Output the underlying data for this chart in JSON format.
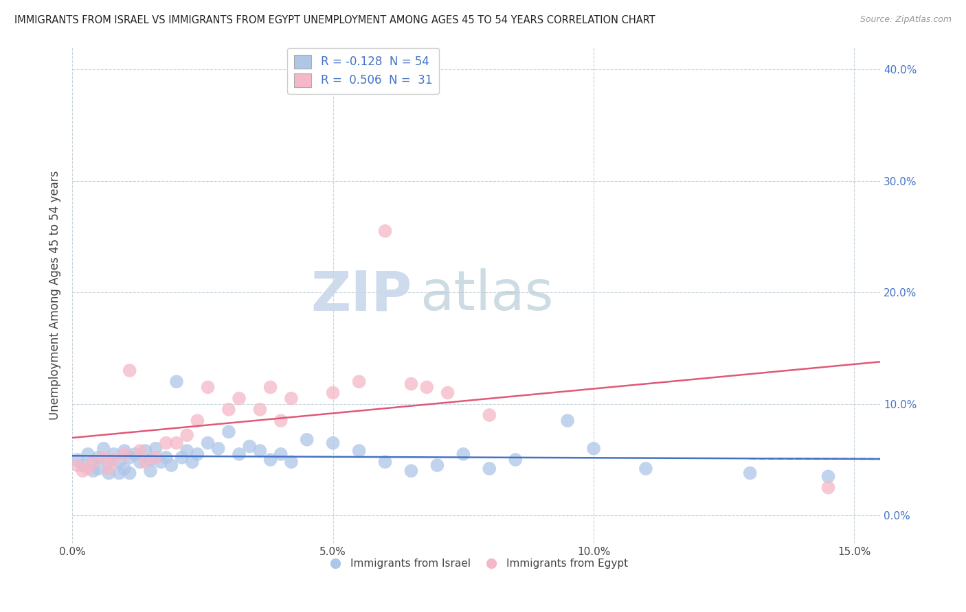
{
  "title": "IMMIGRANTS FROM ISRAEL VS IMMIGRANTS FROM EGYPT UNEMPLOYMENT AMONG AGES 45 TO 54 YEARS CORRELATION CHART",
  "source": "Source: ZipAtlas.com",
  "ylabel": "Unemployment Among Ages 45 to 54 years",
  "xlim": [
    0.0,
    0.155
  ],
  "ylim": [
    -0.025,
    0.42
  ],
  "xticks": [
    0.0,
    0.05,
    0.1,
    0.15
  ],
  "xticklabels": [
    "0.0%",
    "5.0%",
    "10.0%",
    "15.0%"
  ],
  "yticks": [
    0.0,
    0.1,
    0.2,
    0.3,
    0.4
  ],
  "yticklabels": [
    "0.0%",
    "10.0%",
    "20.0%",
    "30.0%",
    "40.0%"
  ],
  "israel_color": "#aec6e8",
  "egypt_color": "#f4b8c8",
  "israel_line_color": "#4472c4",
  "egypt_line_color": "#e05878",
  "israel_R": -0.128,
  "israel_N": 54,
  "egypt_R": 0.506,
  "egypt_N": 31,
  "watermark_color": "#c8d8ea",
  "background_color": "#ffffff",
  "grid_color": "#c8d4dc",
  "israel_x": [
    0.001,
    0.002,
    0.003,
    0.004,
    0.004,
    0.005,
    0.005,
    0.006,
    0.007,
    0.007,
    0.008,
    0.009,
    0.009,
    0.01,
    0.01,
    0.011,
    0.011,
    0.012,
    0.013,
    0.014,
    0.015,
    0.015,
    0.016,
    0.017,
    0.018,
    0.019,
    0.02,
    0.021,
    0.022,
    0.023,
    0.024,
    0.026,
    0.028,
    0.03,
    0.032,
    0.034,
    0.036,
    0.038,
    0.04,
    0.042,
    0.045,
    0.05,
    0.055,
    0.06,
    0.065,
    0.07,
    0.075,
    0.08,
    0.085,
    0.095,
    0.1,
    0.11,
    0.13,
    0.145
  ],
  "israel_y": [
    0.05,
    0.045,
    0.055,
    0.048,
    0.04,
    0.052,
    0.042,
    0.06,
    0.048,
    0.038,
    0.055,
    0.048,
    0.038,
    0.058,
    0.042,
    0.052,
    0.038,
    0.055,
    0.048,
    0.058,
    0.04,
    0.05,
    0.06,
    0.048,
    0.052,
    0.045,
    0.12,
    0.052,
    0.058,
    0.048,
    0.055,
    0.065,
    0.06,
    0.075,
    0.055,
    0.062,
    0.058,
    0.05,
    0.055,
    0.048,
    0.068,
    0.065,
    0.058,
    0.048,
    0.04,
    0.045,
    0.055,
    0.042,
    0.05,
    0.085,
    0.06,
    0.042,
    0.038,
    0.035
  ],
  "egypt_x": [
    0.001,
    0.002,
    0.003,
    0.004,
    0.006,
    0.007,
    0.008,
    0.01,
    0.011,
    0.013,
    0.014,
    0.016,
    0.018,
    0.02,
    0.022,
    0.024,
    0.026,
    0.03,
    0.032,
    0.036,
    0.038,
    0.04,
    0.042,
    0.05,
    0.055,
    0.06,
    0.065,
    0.068,
    0.072,
    0.08,
    0.145
  ],
  "egypt_y": [
    0.045,
    0.04,
    0.042,
    0.048,
    0.052,
    0.042,
    0.05,
    0.055,
    0.13,
    0.058,
    0.048,
    0.052,
    0.065,
    0.065,
    0.072,
    0.085,
    0.115,
    0.095,
    0.105,
    0.095,
    0.115,
    0.085,
    0.105,
    0.11,
    0.12,
    0.255,
    0.118,
    0.115,
    0.11,
    0.09,
    0.025
  ],
  "legend_bottom": [
    "Immigrants from Israel",
    "Immigrants from Egypt"
  ]
}
